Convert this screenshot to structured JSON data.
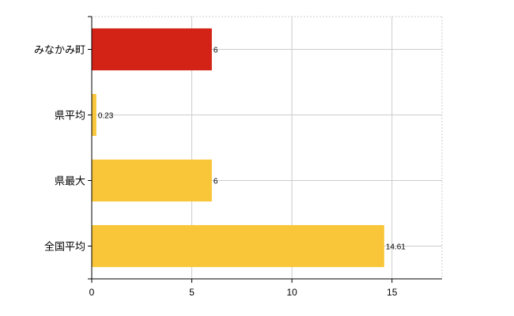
{
  "chart_data": {
    "type": "bar",
    "orientation": "horizontal",
    "categories": [
      "みなかみ町",
      "県平均",
      "県最大",
      "全国平均"
    ],
    "values": [
      6,
      0.23,
      6,
      14.61
    ],
    "data_labels": [
      "6",
      "0.23",
      "6",
      "14.61"
    ],
    "colors": [
      "#d32317",
      "#f9c63a",
      "#f9c63a",
      "#f9c63a"
    ],
    "xlim": [
      0,
      17.5
    ],
    "xticks": [
      0,
      5,
      10,
      15
    ],
    "xtick_labels": [
      "0",
      "5",
      "10",
      "15"
    ],
    "grid": true,
    "legend": "none"
  }
}
